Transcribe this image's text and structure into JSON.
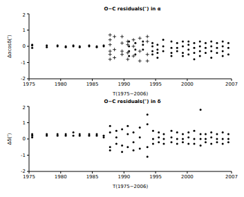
{
  "chart_data": [
    {
      "type": "scatter",
      "title": "O−C residuals(″) in α",
      "x_label": "T(1975−2006)",
      "y_label": "Δαcosδ(″)",
      "xlim": [
        1975,
        2007
      ],
      "xticks": [
        1975,
        1980,
        1985,
        1990,
        1995,
        2000,
        2007
      ],
      "ylim": [
        -2,
        2
      ],
      "yticks": [
        -2,
        -1,
        0,
        1,
        2
      ],
      "series": [
        {
          "marker": "plus",
          "color": "#000000",
          "x": [
            1987.8,
            1987.8,
            1987.8,
            1987.8,
            1987.8,
            1987.8,
            1988.5,
            1988.5,
            1988.5,
            1989.7,
            1989.7,
            1989.7,
            1989.7,
            1990.6,
            1990.6,
            1990.6,
            1990.6,
            1991.5,
            1991.5,
            1991.5,
            1992.5,
            1992.5,
            1992.5,
            1993.7,
            1993.7,
            1993.7,
            1993.7
          ],
          "values": [
            0.7,
            0.4,
            -0.3,
            -0.8,
            -0.5,
            0.1,
            0.6,
            -0.2,
            -0.7,
            0.6,
            -0.3,
            0.2,
            -0.5,
            0.3,
            -0.8,
            -0.4,
            0.1,
            0.4,
            -0.6,
            0,
            0.5,
            -0.9,
            -0.3,
            0.3,
            -0.5,
            0.6,
            -0.9
          ]
        },
        {
          "marker": "circle",
          "color": "#000000",
          "x": [
            1975.5,
            1975.5,
            1975.5,
            1977.8,
            1977.8,
            1979.5,
            1979.5,
            1980.8,
            1980.8,
            1982,
            1982,
            1983,
            1983,
            1984.5,
            1984.5,
            1985.7,
            1985.7,
            1986.8,
            1986.8,
            1990.8,
            1990.8,
            1990.8,
            1990.8,
            1991.8,
            1991.8,
            1991.8,
            1993,
            1993,
            1993,
            1994.5,
            1994.5,
            1994.5,
            1994.5,
            1995.3,
            1995.3,
            1995.3,
            1995.3,
            1996.2,
            1996.2,
            1996.2,
            1997.5,
            1997.5,
            1997.5,
            1997.5,
            1998.4,
            1998.4,
            1998.4,
            1999.3,
            1999.3,
            1999.3,
            1999.3,
            2000.2,
            2000.2,
            2000.2,
            2000.2,
            2001.1,
            2001.1,
            2001.1,
            2001.1,
            2002,
            2002,
            2002,
            2002,
            2002.9,
            2002.9,
            2002.9,
            2003.8,
            2003.8,
            2003.8,
            2003.8,
            2004.7,
            2004.7,
            2004.7,
            2005.6,
            2005.6,
            2005.6,
            2005.6,
            2006.5,
            2006.5,
            2006.5
          ],
          "values": [
            0.05,
            -0.1,
            0.1,
            0.05,
            -0.05,
            0,
            0.05,
            0,
            -0.05,
            0,
            0.05,
            -0.05,
            0,
            0,
            0.05,
            0,
            -0.05,
            0.05,
            0,
            0.3,
            0,
            -0.3,
            -0.6,
            0.2,
            -0.2,
            -0.5,
            0.3,
            0.1,
            -0.2,
            0.2,
            0,
            -0.3,
            -0.5,
            0.1,
            -0.2,
            -0.4,
            -0.7,
            0.4,
            0,
            -0.3,
            0.3,
            -0.1,
            -0.4,
            -0.6,
            0.2,
            -0.1,
            -0.3,
            0.3,
            0,
            -0.4,
            -0.6,
            0.3,
            0.1,
            -0.2,
            -0.5,
            0.2,
            -0.1,
            -0.4,
            -0.8,
            0.3,
            0,
            -0.3,
            -0.6,
            0.2,
            -0.1,
            -0.4,
            0.3,
            0,
            -0.3,
            -0.7,
            0.2,
            -0.1,
            -0.4,
            0.3,
            0,
            -0.3,
            -0.6,
            0.2,
            -0.1,
            -0.5
          ]
        }
      ]
    },
    {
      "type": "scatter",
      "title": "O−C residuals(″) in δ",
      "x_label": "T(1975−2006)",
      "y_label": "Δδ(″)",
      "xlim": [
        1975,
        2007
      ],
      "xticks": [
        1975,
        1980,
        1985,
        1990,
        1995,
        2000,
        2007
      ],
      "ylim": [
        -2,
        2
      ],
      "yticks": [
        -2,
        -1,
        0,
        1,
        2
      ],
      "series": [
        {
          "marker": "circle",
          "color": "#000000",
          "x": [
            1975.5,
            1975.5,
            1975.5,
            1977.8,
            1977.8,
            1979.5,
            1979.5,
            1980.8,
            1980.8,
            1982,
            1982,
            1983,
            1983,
            1984.5,
            1984.5,
            1985.7,
            1985.7,
            1986.8,
            1986.8,
            1987.8,
            1987.8,
            1987.8,
            1987.8,
            1988.8,
            1988.8,
            1988.8,
            1989.7,
            1989.7,
            1989.7,
            1990.6,
            1990.6,
            1990.6,
            1991.5,
            1991.5,
            1991.5,
            1992.5,
            1992.5,
            1992.5,
            1993.7,
            1993.7,
            1993.7,
            1993.7,
            1994.6,
            1994.6,
            1994.6,
            1995.5,
            1995.5,
            1995.5,
            1996.3,
            1996.3,
            1996.3,
            1997.5,
            1997.5,
            1997.5,
            1998.4,
            1998.4,
            1998.4,
            1999.3,
            1999.3,
            1999.3,
            2000.2,
            2000.2,
            2000.2,
            2001.1,
            2001.1,
            2001.1,
            2002.1,
            2002.1,
            2002.1,
            2002.1,
            2002.9,
            2002.9,
            2002.9,
            2003.8,
            2003.8,
            2003.8,
            2004.7,
            2004.7,
            2004.7,
            2005.6,
            2005.6,
            2005.6,
            2006.5,
            2006.5,
            2006.5
          ],
          "values": [
            0.2,
            0.1,
            0.3,
            0.3,
            0.2,
            0.2,
            0.3,
            0.3,
            0.2,
            0.2,
            0.4,
            0.3,
            0.2,
            0.3,
            0.2,
            0.2,
            0.3,
            0.2,
            0.1,
            0.8,
            0.4,
            -0.5,
            -0.7,
            0.5,
            0.1,
            -0.3,
            0.6,
            -0.4,
            -0.8,
            0.8,
            0.3,
            -0.5,
            0.4,
            -0.2,
            -0.7,
            0.7,
            0.1,
            -0.6,
            1.5,
            0.9,
            -0.5,
            -1.1,
            0.5,
            0,
            -0.3,
            0.4,
            0.1,
            -0.2,
            0.3,
            0,
            -0.3,
            0.5,
            0.1,
            -0.2,
            0.4,
            0,
            -0.3,
            0.3,
            0,
            -0.2,
            0.4,
            0.1,
            -0.3,
            0.5,
            0,
            -0.3,
            1.8,
            0.3,
            0,
            -0.4,
            0.3,
            0,
            -0.2,
            0.4,
            0.1,
            -0.3,
            0.3,
            0,
            -0.2,
            0.4,
            0,
            -0.3,
            0.3,
            0,
            -0.2
          ]
        }
      ]
    }
  ]
}
